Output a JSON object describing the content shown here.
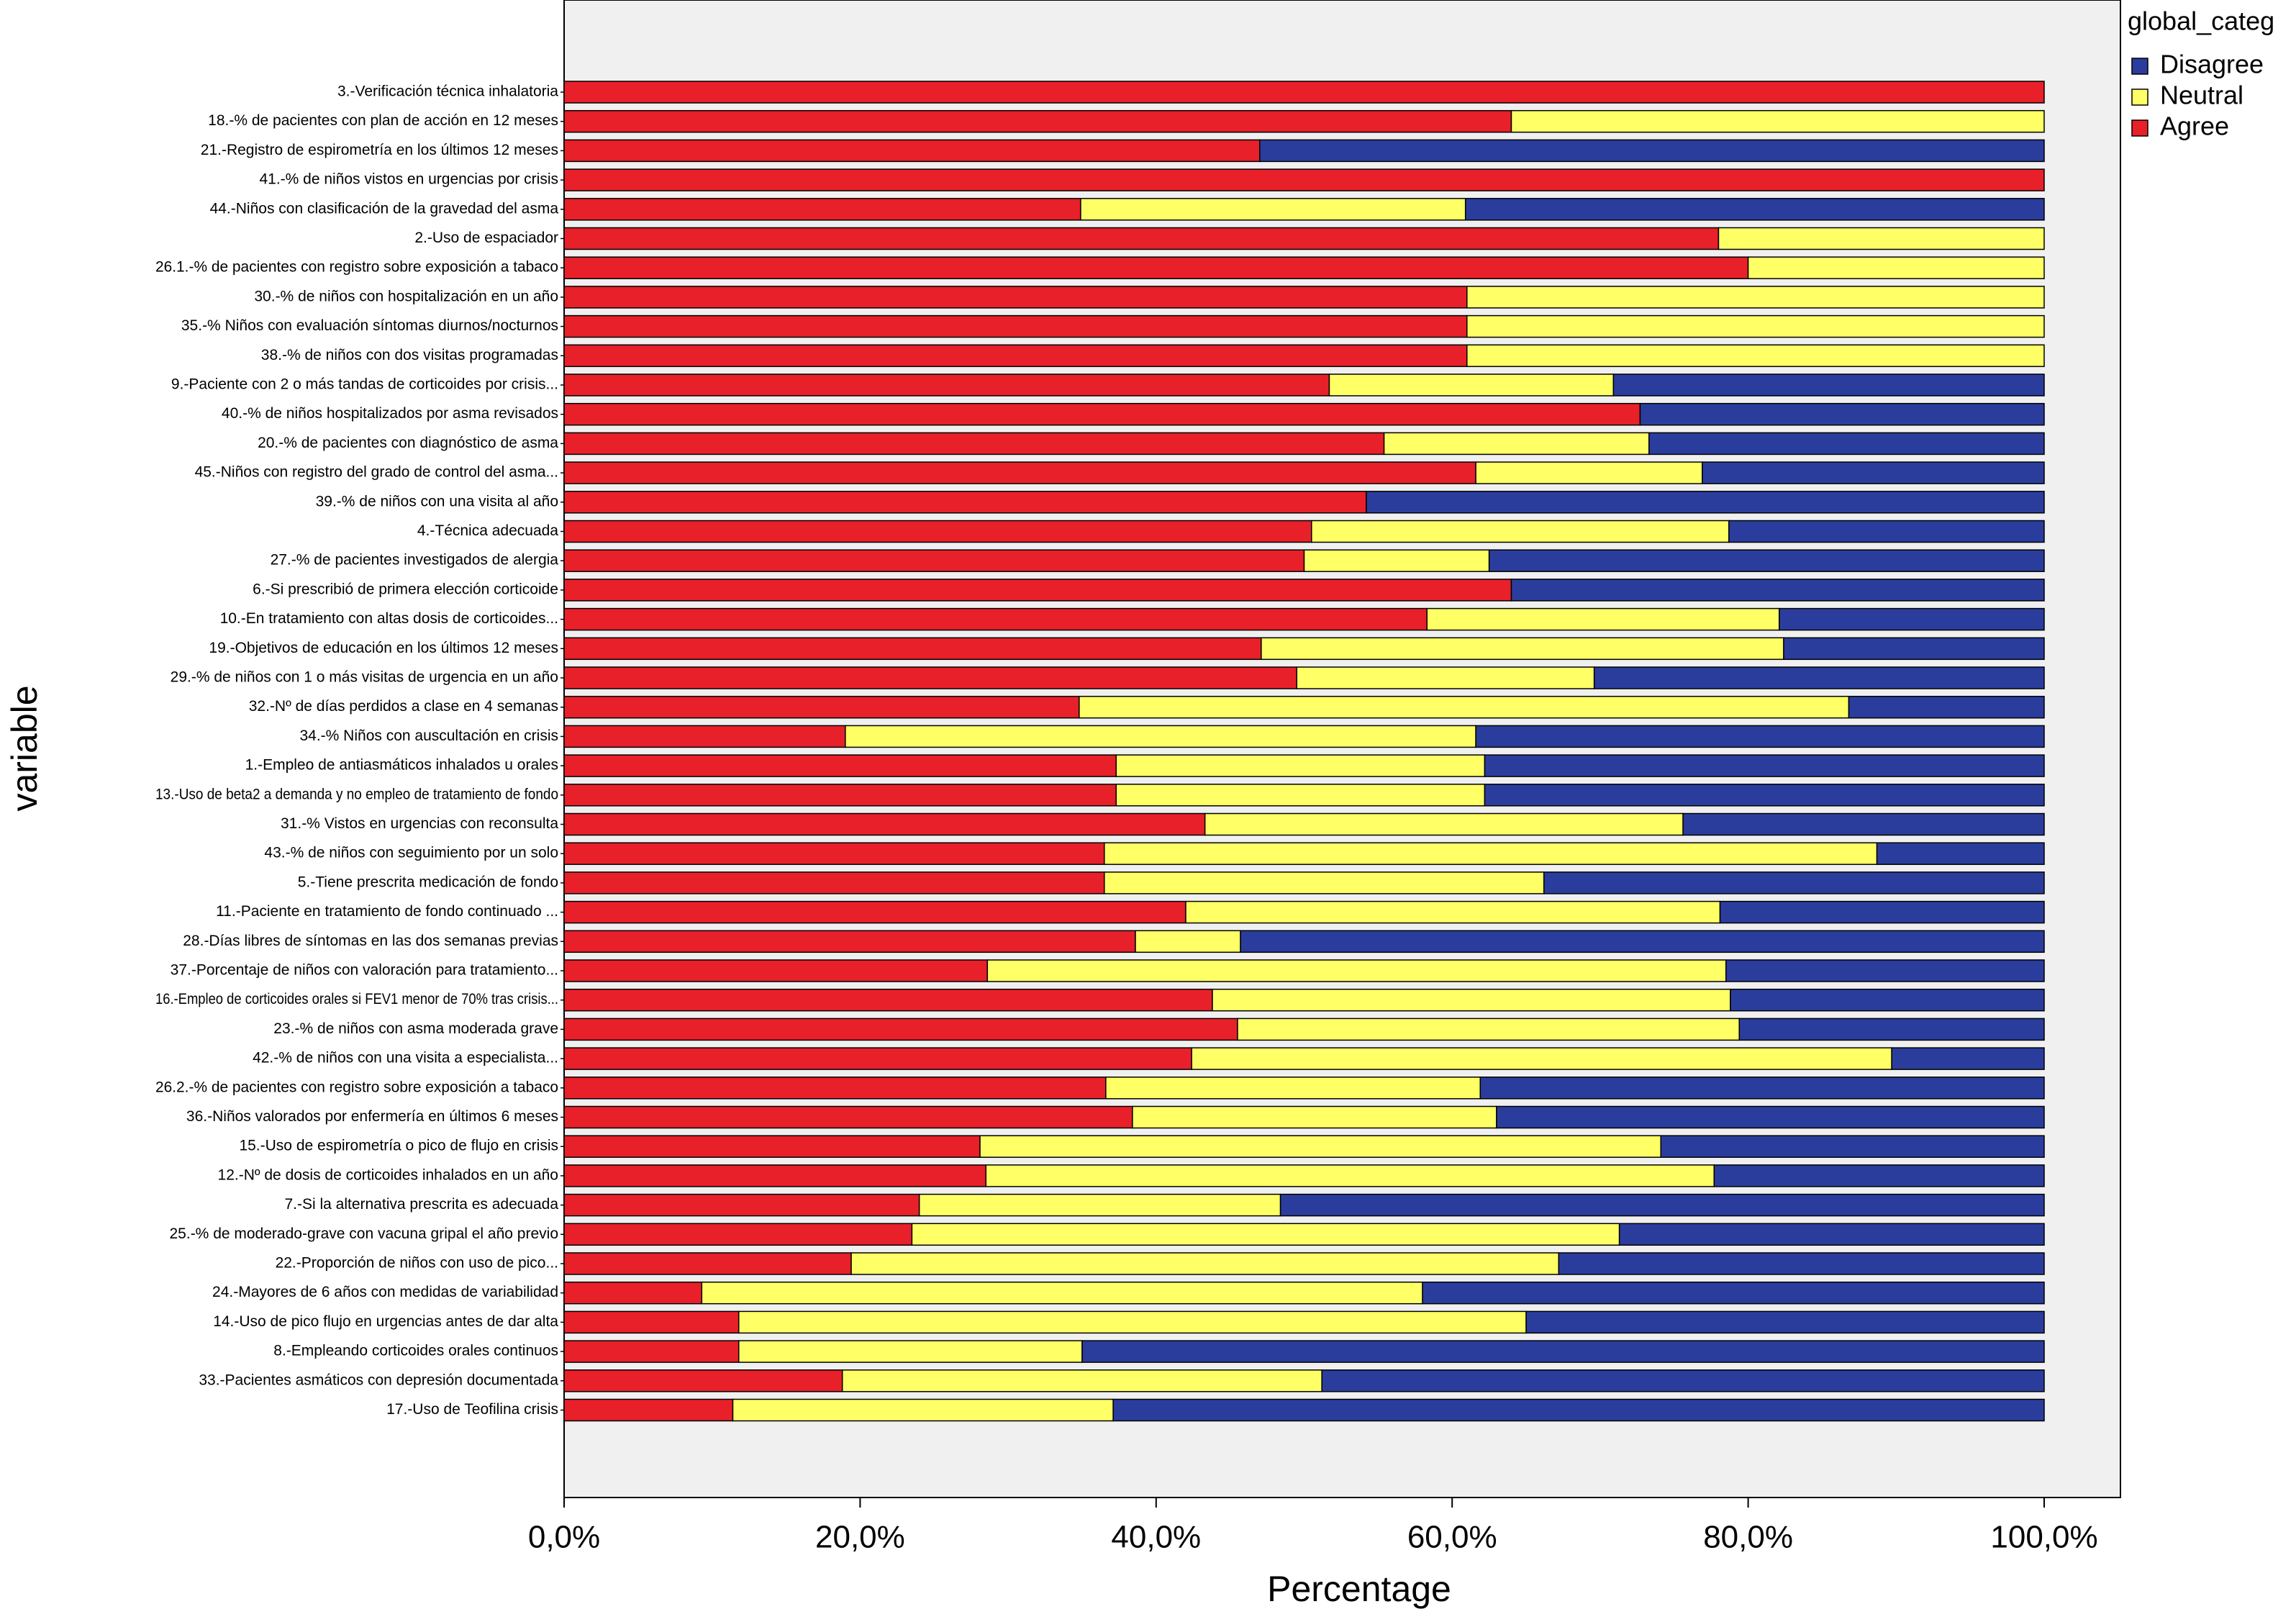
{
  "chart_data": {
    "type": "stacked-bar-horizontal",
    "x_label": "Percentage",
    "y_label": "variable",
    "legend_title": "global_categ",
    "legend_position": "right",
    "xlim": [
      0,
      100
    ],
    "xticks": [
      {
        "value": 0,
        "label": "0,0%"
      },
      {
        "value": 20,
        "label": "20,0%"
      },
      {
        "value": 40,
        "label": "40,0%"
      },
      {
        "value": 60,
        "label": "60,0%"
      },
      {
        "value": 80,
        "label": "80,0%"
      },
      {
        "value": 100,
        "label": "100,0%"
      }
    ],
    "categories": [
      "3.-Verificación técnica inhalatoria",
      "18.-% de pacientes con plan de acción en 12 meses",
      "21.-Registro de espirometría en los últimos 12 meses",
      "41.-% de niños vistos en urgencias por crisis",
      "44.-Niños con clasificación de la gravedad del asma",
      "2.-Uso de espaciador",
      "26.1.-% de pacientes con registro sobre exposición a tabaco",
      "30.-% de niños con hospitalización en un año",
      "35.-% Niños con evaluación síntomas diurnos/nocturnos",
      "38.-% de niños con dos visitas programadas",
      "9.-Paciente con 2 o más tandas de corticoides por crisis...",
      "40.-% de niños hospitalizados por asma revisados",
      "20.-% de pacientes con diagnóstico de asma",
      "45.-Niños con registro del grado de control del asma...",
      "39.-% de niños con una visita al año",
      "4.-Técnica adecuada",
      "27.-% de pacientes investigados de alergia",
      "6.-Si prescribió de primera elección corticoide",
      "10.-En tratamiento con altas dosis de corticoides...",
      "19.-Objetivos de educación en los últimos 12 meses",
      "29.-% de niños con 1 o más visitas de urgencia en un año",
      "32.-Nº de días perdidos a clase en 4 semanas",
      "34.-% Niños con auscultación en crisis",
      "1.-Empleo de antiasmáticos inhalados u orales",
      "13.-Uso de beta2 a demanda y no empleo de tratamiento de fondo",
      "31.-% Vistos en urgencias con reconsulta",
      "43.-% de niños con seguimiento por un solo",
      "5.-Tiene prescrita medicación de fondo",
      "11.-Paciente en tratamiento de fondo continuado ...",
      "28.-Días libres de síntomas en las dos semanas previas",
      "37.-Porcentaje de niños con valoración para tratamiento...",
      "16.-Empleo de corticoides orales si FEV1 menor de 70% tras crisis...",
      "23.-% de niños con asma moderada grave",
      "42.-% de niños con una visita a especialista...",
      "26.2.-% de pacientes con registro sobre exposición a tabaco",
      "36.-Niños valorados por enfermería en últimos 6 meses",
      "15.-Uso de espirometría o pico de flujo en crisis",
      "12.-Nº de dosis de corticoides inhalados en un año",
      "7.-Si la alternativa prescrita es adecuada",
      "25.-% de moderado-grave con vacuna gripal el año previo",
      "22.-Proporción de niños con uso de pico...",
      "24.-Mayores de 6 años con medidas de variabilidad",
      "14.-Uso de pico flujo en urgencias antes de dar alta",
      "8.-Empleando corticoides orales continuos",
      "33.-Pacientes asmáticos con depresión documentada",
      "17.-Uso de Teofilina crisis"
    ],
    "series": [
      {
        "name": "Agree",
        "color": "#e8202a",
        "values": [
          100,
          64.0,
          47.0,
          100,
          34.9,
          78.0,
          80.0,
          61.0,
          61.0,
          61.0,
          51.7,
          72.7,
          55.4,
          61.6,
          54.2,
          50.5,
          50.0,
          64.0,
          58.3,
          47.1,
          49.5,
          34.8,
          19.0,
          37.3,
          37.3,
          43.3,
          36.5,
          36.5,
          42.0,
          38.6,
          28.6,
          43.8,
          45.5,
          42.4,
          36.6,
          38.4,
          28.1,
          28.5,
          24.0,
          23.5,
          19.4,
          9.3,
          11.8,
          11.8,
          18.8,
          11.4
        ]
      },
      {
        "name": "Neutral",
        "color": "#ffff66",
        "values": [
          0,
          36.0,
          0,
          0,
          26.0,
          22.0,
          20.0,
          39.0,
          39.0,
          39.0,
          19.2,
          0,
          17.9,
          15.3,
          0,
          28.2,
          12.5,
          0,
          23.8,
          35.3,
          20.1,
          52.0,
          42.6,
          24.9,
          24.9,
          32.3,
          52.2,
          29.7,
          36.1,
          7.1,
          49.9,
          35.0,
          33.9,
          47.3,
          25.3,
          24.6,
          46.0,
          49.2,
          24.4,
          47.8,
          47.8,
          48.7,
          53.2,
          23.2,
          32.4,
          25.7
        ]
      },
      {
        "name": "Disagree",
        "color": "#2b3d9c",
        "values": [
          0,
          0,
          53.0,
          0,
          39.1,
          0,
          0,
          0,
          0,
          0,
          29.1,
          27.3,
          26.7,
          23.1,
          45.8,
          21.3,
          37.5,
          36.0,
          17.9,
          17.6,
          30.4,
          13.2,
          38.4,
          37.8,
          37.8,
          24.4,
          11.3,
          33.8,
          21.9,
          54.3,
          21.5,
          21.2,
          20.6,
          10.3,
          38.1,
          37.0,
          25.9,
          22.3,
          51.6,
          28.7,
          32.8,
          42.0,
          35.0,
          65.0,
          48.8,
          62.9
        ]
      }
    ]
  }
}
